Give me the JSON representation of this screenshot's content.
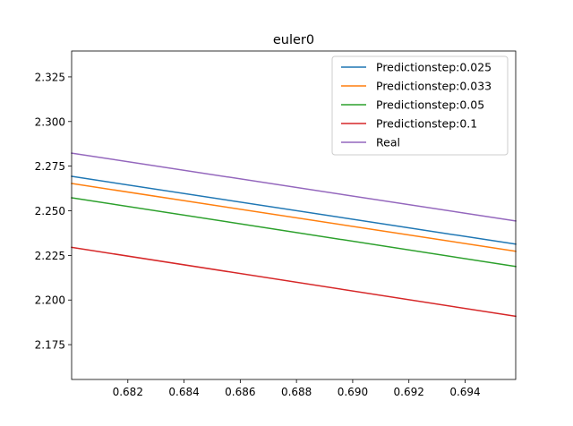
{
  "chart_data": {
    "type": "line",
    "title": "euler0",
    "xlabel": "",
    "ylabel": "",
    "xlim": [
      0.68,
      0.6958
    ],
    "ylim": [
      2.1555,
      2.3395
    ],
    "x_ticks": [
      0.682,
      0.684,
      0.686,
      0.688,
      0.69,
      0.692,
      0.694
    ],
    "x_tick_labels": [
      "0.682",
      "0.684",
      "0.686",
      "0.688",
      "0.690",
      "0.692",
      "0.694"
    ],
    "y_ticks": [
      2.175,
      2.2,
      2.225,
      2.25,
      2.275,
      2.3,
      2.325
    ],
    "y_tick_labels": [
      "2.175",
      "2.200",
      "2.225",
      "2.250",
      "2.275",
      "2.300",
      "2.325"
    ],
    "grid": false,
    "legend_position": "top-right",
    "series": [
      {
        "name": "Predictionstep:0.025",
        "color": "#1f77b4",
        "x": [
          0.68,
          0.6958
        ],
        "y": [
          2.2693,
          2.2313
        ]
      },
      {
        "name": "Predictionstep:0.033",
        "color": "#ff7f0e",
        "x": [
          0.68,
          0.6958
        ],
        "y": [
          2.2653,
          2.2273
        ]
      },
      {
        "name": "Predictionstep:0.05",
        "color": "#2ca02c",
        "x": [
          0.68,
          0.6958
        ],
        "y": [
          2.2573,
          2.2188
        ]
      },
      {
        "name": "Predictionstep:0.1",
        "color": "#d62728",
        "x": [
          0.68,
          0.6958
        ],
        "y": [
          2.2295,
          2.1909
        ]
      },
      {
        "name": "Real",
        "color": "#9467bd",
        "x": [
          0.68,
          0.6958
        ],
        "y": [
          2.2823,
          2.2443
        ]
      }
    ]
  }
}
